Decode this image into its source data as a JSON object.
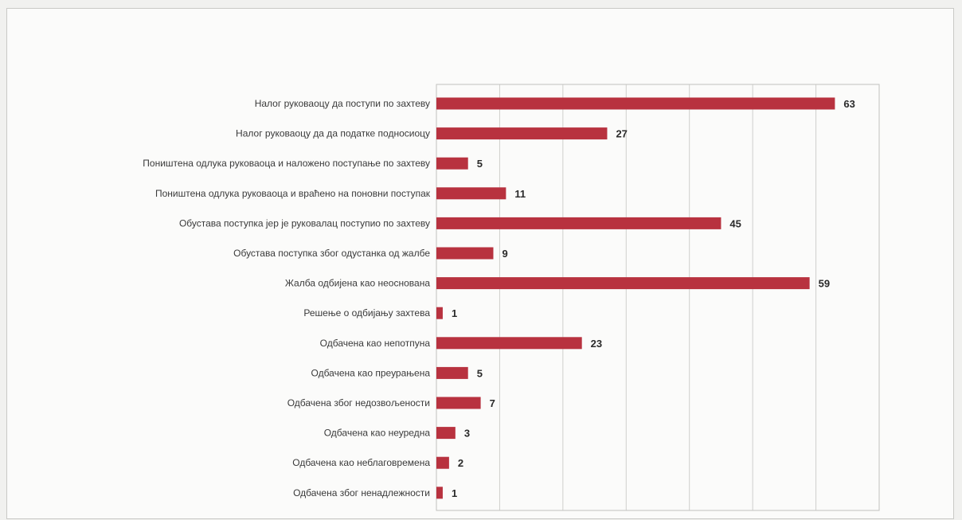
{
  "chart_data": {
    "type": "bar",
    "orientation": "horizontal",
    "categories": [
      "Налог руковаоцу да поступи по захтеву",
      "Налог руковаоцу да да податке подносиоцу",
      "Поништена одлука руковаоца и наложено поступање по захтеву",
      "Поништена одлука руковаоца и враћено на поновни поступак",
      "Обустава поступка јер је руковалац поступио по захтеву",
      "Обустава поступка због одустанка од жалбе",
      "Жалба одбијена као неоснована",
      "Решење о одбијању захтева",
      "Одбачена као непотпуна",
      "Одбачена као преурањена",
      "Одбачена због недозвољености",
      "Одбачена као неуредна",
      "Одбачена као неблаговремена",
      "Одбачена због ненадлежности"
    ],
    "values": [
      63,
      27,
      5,
      11,
      45,
      9,
      59,
      1,
      23,
      5,
      7,
      3,
      2,
      1
    ],
    "value_labels": [
      "63",
      "27",
      "5",
      "11",
      "45",
      "9",
      "59",
      "1",
      "23",
      "5",
      "7",
      "3",
      "2",
      "1"
    ],
    "xlim": [
      0,
      70
    ],
    "grid": true,
    "data_labels": true,
    "legend": "none",
    "bar_color": "#b8323f"
  }
}
